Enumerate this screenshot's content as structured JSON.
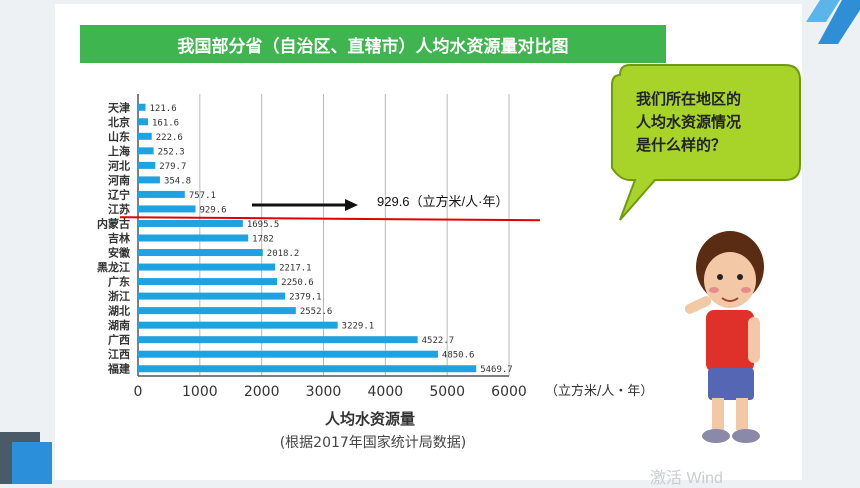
{
  "slide": {
    "title": "我国部分省（自治区、直辖市）人均水资源量对比图",
    "bubble_lines": [
      "我们所在地区的",
      "人均水资源情况",
      "是什么样的？"
    ],
    "annotation": "929.6（立方米/人·年）",
    "watermark": "激活 Wind"
  },
  "chart_data": {
    "type": "bar",
    "orientation": "horizontal",
    "title": "我国部分省（自治区、直辖市）人均水资源量对比图",
    "xlabel": "人均水资源量",
    "source": "(根据2017年国家统计局数据)",
    "unit": "（立方米/人・年）",
    "xlim": [
      0,
      6000
    ],
    "xticks": [
      "0",
      "1000",
      "2000",
      "3000",
      "4000",
      "5000",
      "6000"
    ],
    "grid": true,
    "bar_color": "#1fa3e0",
    "reference_line": {
      "value": 929.6,
      "color": "#e00000"
    },
    "categories": [
      "天津",
      "北京",
      "山东",
      "上海",
      "河北",
      "河南",
      "辽宁",
      "江苏",
      "内蒙古",
      "吉林",
      "安徽",
      "黑龙江",
      "广东",
      "浙江",
      "湖北",
      "湖南",
      "广西",
      "江西",
      "福建"
    ],
    "values": [
      121.6,
      161.6,
      222.6,
      252.3,
      279.7,
      354.8,
      757.1,
      929.6,
      1695.5,
      1782,
      2018.2,
      2217.1,
      2250.6,
      2379.1,
      2552.6,
      3229.1,
      4522.7,
      4850.6,
      5469.7
    ],
    "value_labels": [
      "121.6",
      "161.6",
      "222.6",
      "252.3",
      "279.7",
      "354.8",
      "757.1",
      "929.6",
      "1695.5",
      "1782",
      "2018.2",
      "2217.1",
      "2250.6",
      "2379.1",
      "2552.6",
      "3229.1",
      "4522.7",
      "4850.6",
      "5469.7"
    ]
  }
}
